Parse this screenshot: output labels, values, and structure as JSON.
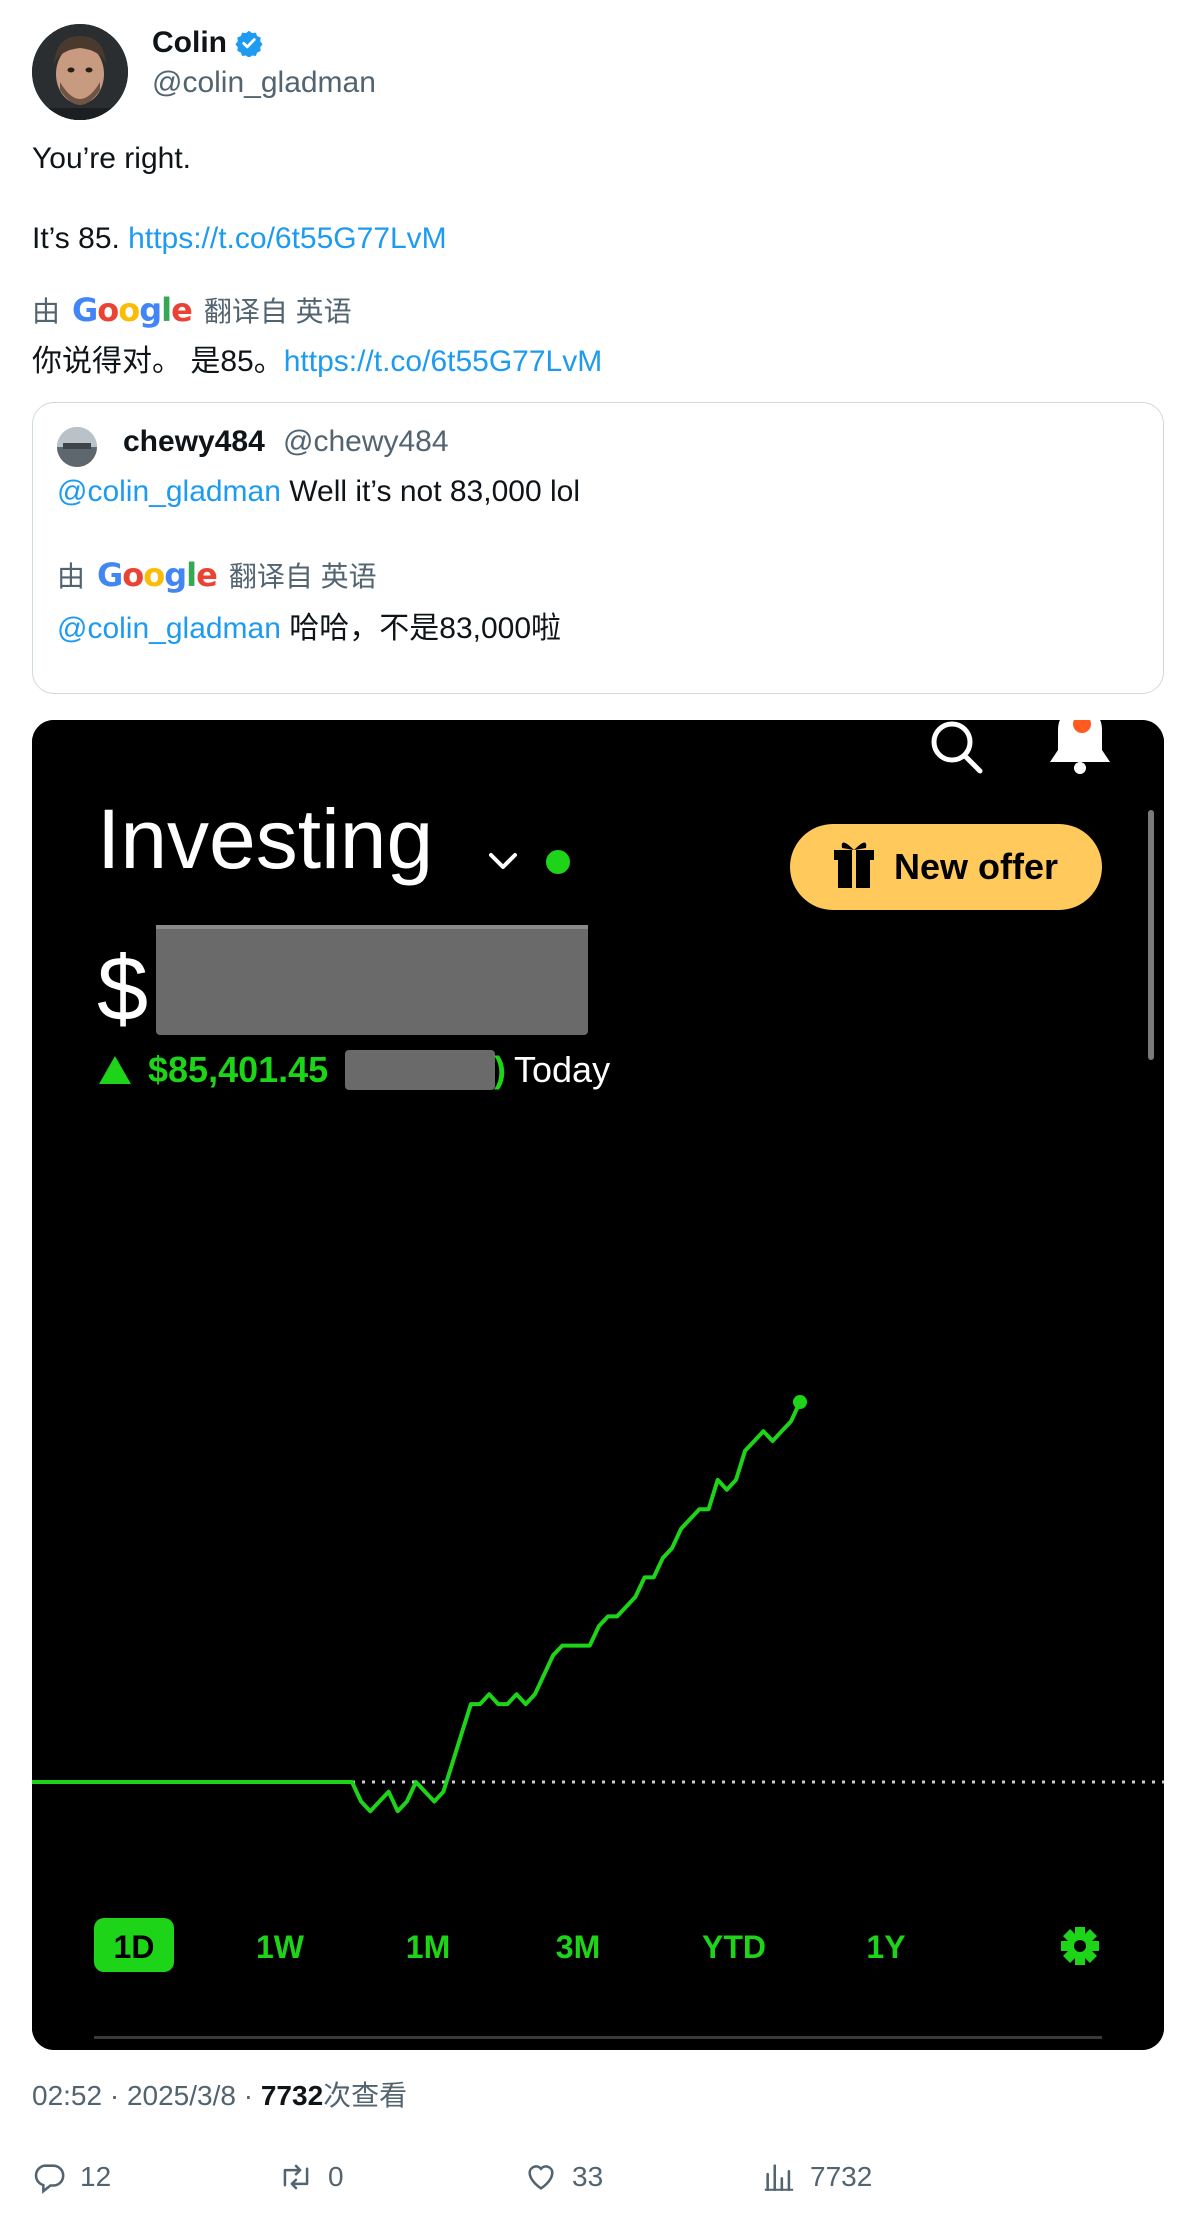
{
  "author": {
    "name": "Colin",
    "handle": "@colin_gladman",
    "verified": true
  },
  "tweet": {
    "line1": "You’re right.",
    "line2_text": "It’s 85. ",
    "line2_link": "https://t.co/6t55G77LvM"
  },
  "translation": {
    "by_label": "由",
    "provider": "Google",
    "from_label": "翻译自 英语",
    "text": "你说得对。 是85。",
    "link": "https://t.co/6t55G77LvM"
  },
  "quoted_tweet": {
    "name": "chewy484",
    "handle": "@chewy484",
    "mention": "@colin_gladman",
    "text": " Well it’s not 83,000 lol",
    "translation": {
      "by_label": "由",
      "provider": "Google",
      "from_label": "翻译自 英语",
      "mention": "@colin_gladman",
      "text": " 哈哈，不是83,000啦"
    }
  },
  "app_screenshot": {
    "title": "Investing",
    "offer_button": "New offer",
    "balance_prefix": "$",
    "change_value": "$85,401.45",
    "change_paren_close": ")",
    "change_period": "Today",
    "ranges": [
      "1D",
      "1W",
      "1M",
      "3M",
      "YTD",
      "1Y"
    ],
    "selected_range": "1D",
    "accent_color": "#1ed418",
    "offer_color": "#ffc95c",
    "notification_dot_color": "#ff5a1f",
    "chart_data": {
      "type": "line",
      "x_label": "",
      "y_label": "",
      "values": [
        0,
        0,
        0,
        0,
        0,
        0,
        0,
        0,
        0,
        0,
        0,
        0,
        0,
        0,
        0,
        0,
        0,
        0,
        0,
        0,
        0,
        0,
        0,
        0,
        0,
        0,
        0,
        0,
        0,
        0,
        0,
        0,
        0,
        0,
        0,
        0,
        -2,
        -3,
        -2,
        -1,
        -3,
        -2,
        0,
        -1,
        -2,
        -1,
        2,
        5,
        8,
        8,
        9,
        8,
        8,
        9,
        8,
        9,
        11,
        13,
        14,
        14,
        14,
        14,
        16,
        17,
        17,
        18,
        19,
        21,
        21,
        23,
        24,
        26,
        27,
        28,
        28,
        31,
        30,
        31,
        34,
        35,
        36,
        35,
        36,
        37,
        39
      ],
      "baseline": 0,
      "grid": false
    }
  },
  "timestamp": {
    "time": "02:52",
    "separator1": " · ",
    "date": "2025/3/8",
    "separator2": " · ",
    "views_count": "7732",
    "views_label": "次查看"
  },
  "actions": {
    "replies": "12",
    "retweets": "0",
    "likes": "33",
    "views": "7732"
  }
}
